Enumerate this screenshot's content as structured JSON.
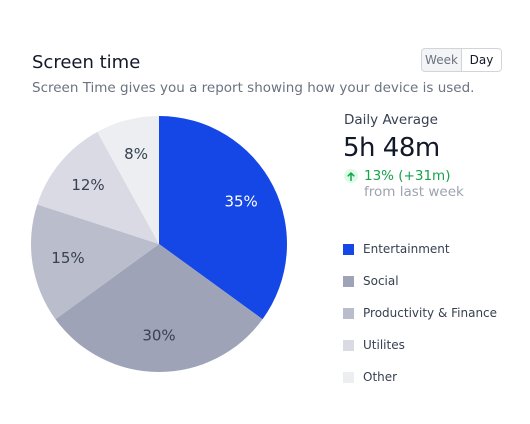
{
  "header": {
    "title": "Screen time",
    "subtitle": "Screen Time gives you a report showing how your device is used."
  },
  "toggle": {
    "week_label": "Week",
    "day_label": "Day",
    "selected": "Day"
  },
  "summary": {
    "label": "Daily Average",
    "value": "5h 48m",
    "change": "13% (+31m)",
    "change_icon": "arrow-up-icon",
    "note": "from last week"
  },
  "chart_data": {
    "type": "pie",
    "slices": [
      {
        "label": "Entertainment",
        "value": 35,
        "text": "35%",
        "color": "#1447e6"
      },
      {
        "label": "Social",
        "value": 30,
        "text": "30%",
        "color": "#9ea3b8"
      },
      {
        "label": "Productivity & Finance",
        "value": 15,
        "text": "15%",
        "color": "#babdcb"
      },
      {
        "label": "Utilites",
        "value": 12,
        "text": "12%",
        "color": "#d9dae3"
      },
      {
        "label": "Other",
        "value": 8,
        "text": "8%",
        "color": "#eceef2"
      }
    ]
  }
}
